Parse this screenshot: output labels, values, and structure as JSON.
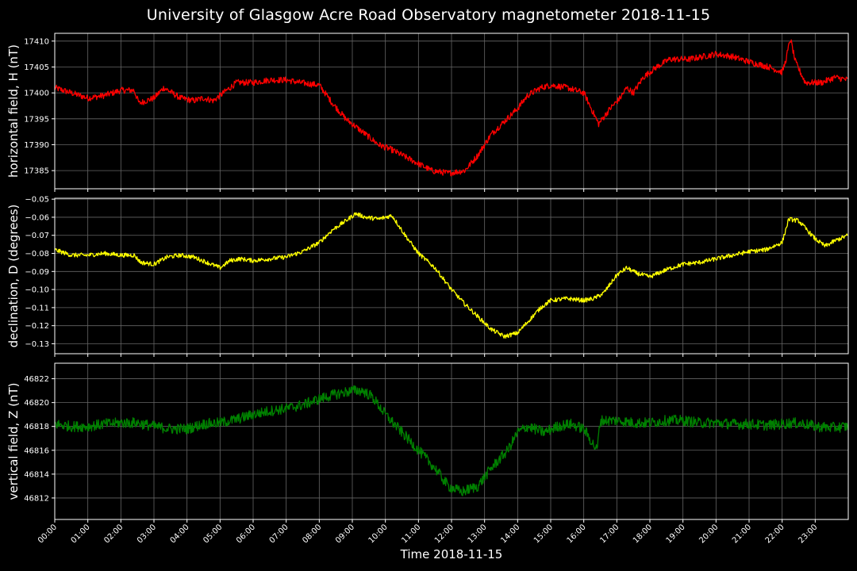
{
  "title": "University of Glasgow Acre Road Observatory magnetometer 2018-11-15",
  "xlabel": "Time 2018-11-15",
  "x_ticks": [
    "00:00",
    "01:00",
    "02:00",
    "03:00",
    "04:00",
    "05:00",
    "06:00",
    "07:00",
    "08:00",
    "09:00",
    "10:00",
    "11:00",
    "12:00",
    "13:00",
    "14:00",
    "15:00",
    "16:00",
    "17:00",
    "18:00",
    "19:00",
    "20:00",
    "21:00",
    "22:00",
    "23:00"
  ],
  "chart_data": [
    {
      "type": "line",
      "ylabel": "horizontal field, H (nT)",
      "color": "#ff0000",
      "ylim": [
        17381.5,
        17411.5
      ],
      "yticks": [
        17385,
        17390,
        17395,
        17400,
        17405,
        17410
      ],
      "ytick_labels": [
        "17385",
        "17390",
        "17395",
        "17400",
        "17405",
        "17410"
      ],
      "x_hours": [
        0,
        0.5,
        1,
        1.5,
        2,
        2.4,
        2.55,
        3,
        3.3,
        3.8,
        4.2,
        4.5,
        4.8,
        5.2,
        5.5,
        6,
        6.5,
        7,
        7.4,
        8,
        8.4,
        8.8,
        9.2,
        9.5,
        9.8,
        10.2,
        10.8,
        11.4,
        11.9,
        12.4,
        12.8,
        13.2,
        13.6,
        14,
        14.3,
        14.7,
        15,
        15.5,
        16,
        16.3,
        16.45,
        16.8,
        17.1,
        17.3,
        17.5,
        17.8,
        18.2,
        18.6,
        19.2,
        20,
        20.5,
        21,
        21.3,
        21.6,
        22,
        22.1,
        22.25,
        22.4,
        22.7,
        23.2,
        23.6,
        23.99
      ],
      "values": [
        17401,
        17400,
        17399,
        17399.5,
        17400.5,
        17400.5,
        17398,
        17399,
        17401,
        17399,
        17398.5,
        17399,
        17398.5,
        17400.5,
        17402,
        17402,
        17402.5,
        17402.5,
        17402,
        17401.5,
        17398,
        17395,
        17393,
        17391.5,
        17390,
        17389,
        17387,
        17385,
        17384.5,
        17385,
        17388,
        17392,
        17394.5,
        17397,
        17399.5,
        17401,
        17401.5,
        17401,
        17400,
        17396,
        17394,
        17397,
        17399,
        17401,
        17400,
        17403,
        17405,
        17406.5,
        17406.5,
        17407.5,
        17407,
        17406,
        17405.5,
        17405,
        17404,
        17406,
        17410.5,
        17406,
        17402,
        17402,
        17403,
        17402.5
      ],
      "noise": 0.6
    },
    {
      "type": "line",
      "ylabel": "declination, D (degrees)",
      "color": "#ffff00",
      "ylim": [
        -0.1355,
        -0.0495
      ],
      "yticks": [
        -0.13,
        -0.12,
        -0.11,
        -0.1,
        -0.09,
        -0.08,
        -0.07,
        -0.06,
        -0.05
      ],
      "ytick_labels": [
        "−0.13",
        "−0.12",
        "−0.11",
        "−0.10",
        "−0.09",
        "−0.08",
        "−0.07",
        "−0.06",
        "−0.05"
      ],
      "x_hours": [
        0,
        0.5,
        1,
        1.5,
        2,
        2.4,
        2.6,
        3,
        3.4,
        3.8,
        4.2,
        4.6,
        5,
        5.3,
        5.6,
        6,
        6.5,
        7,
        7.5,
        8,
        8.4,
        8.8,
        9.1,
        9.4,
        9.8,
        10.2,
        10.6,
        11,
        11.5,
        12,
        12.4,
        12.8,
        13.2,
        13.6,
        14,
        14.3,
        14.7,
        15,
        15.5,
        16,
        16.3,
        16.6,
        17,
        17.3,
        17.6,
        18,
        18.5,
        19,
        19.5,
        20,
        20.5,
        21,
        21.5,
        22,
        22.2,
        22.5,
        22.8,
        23,
        23.3,
        23.6,
        23.99
      ],
      "values": [
        -0.078,
        -0.081,
        -0.081,
        -0.08,
        -0.081,
        -0.081,
        -0.085,
        -0.086,
        -0.082,
        -0.081,
        -0.082,
        -0.085,
        -0.088,
        -0.084,
        -0.083,
        -0.084,
        -0.083,
        -0.082,
        -0.079,
        -0.074,
        -0.067,
        -0.062,
        -0.058,
        -0.06,
        -0.061,
        -0.059,
        -0.07,
        -0.08,
        -0.088,
        -0.1,
        -0.108,
        -0.115,
        -0.122,
        -0.126,
        -0.124,
        -0.118,
        -0.11,
        -0.106,
        -0.105,
        -0.106,
        -0.105,
        -0.102,
        -0.092,
        -0.088,
        -0.091,
        -0.093,
        -0.089,
        -0.086,
        -0.085,
        -0.083,
        -0.081,
        -0.079,
        -0.078,
        -0.074,
        -0.061,
        -0.062,
        -0.068,
        -0.072,
        -0.076,
        -0.073,
        -0.07
      ],
      "noise": 0.0012
    },
    {
      "type": "line",
      "ylabel": "vertical field, Z (nT)",
      "color": "#008000",
      "ylim": [
        46810.2,
        46823.3
      ],
      "yticks": [
        46812,
        46814,
        46816,
        46818,
        46820,
        46822
      ],
      "ytick_labels": [
        "46812",
        "46814",
        "46816",
        "46818",
        "46820",
        "46822"
      ],
      "x_hours": [
        0,
        0.5,
        1,
        1.5,
        2,
        2.5,
        3,
        3.5,
        4,
        4.5,
        5,
        5.5,
        6,
        6.5,
        7,
        7.5,
        8,
        8.5,
        9,
        9.3,
        9.6,
        10,
        10.5,
        11,
        11.5,
        11.9,
        12.3,
        12.8,
        13.2,
        13.7,
        14,
        14.3,
        14.8,
        15.2,
        15.6,
        16,
        16.4,
        16.5,
        17,
        17.5,
        18,
        18.5,
        19,
        19.5,
        20,
        20.5,
        21,
        21.5,
        22,
        22.3,
        22.7,
        23,
        23.5,
        23.99
      ],
      "values": [
        46818.2,
        46818,
        46818,
        46818.2,
        46818.3,
        46818.3,
        46818,
        46817.8,
        46817.8,
        46818.2,
        46818.3,
        46818.6,
        46819,
        46819.3,
        46819.5,
        46819.8,
        46820.3,
        46820.7,
        46821,
        46821,
        46820.5,
        46819,
        46817.5,
        46816,
        46814.5,
        46813,
        46812.5,
        46813,
        46814.5,
        46816,
        46817.5,
        46818,
        46817.5,
        46818,
        46818.2,
        46817.8,
        46816,
        46818.5,
        46818.5,
        46818.3,
        46818.3,
        46818.5,
        46818.5,
        46818.3,
        46818.3,
        46818.2,
        46818.2,
        46818.1,
        46818.2,
        46818.3,
        46818.2,
        46818,
        46817.9,
        46818
      ],
      "noise": 0.45
    }
  ]
}
